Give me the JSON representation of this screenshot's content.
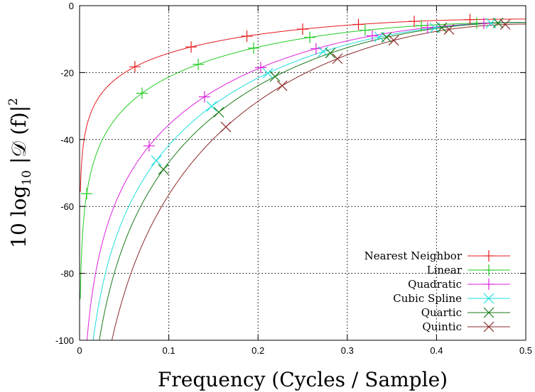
{
  "chart_data": {
    "type": "line",
    "xlabel": "Frequency (Cycles / Sample)",
    "ylabel": "10 log",
    "ylabel_sub": "10",
    "ylabel_rest": " |𝒟 (f)|",
    "ylabel_sup": "2",
    "xlim": [
      0,
      0.5
    ],
    "ylim": [
      -100,
      0
    ],
    "x_ticks": [
      0,
      0.1,
      0.2,
      0.3,
      0.4,
      0.5
    ],
    "x_tick_labels": [
      "0",
      "0.1",
      "0.2",
      "0.3",
      "0.4",
      "0.5"
    ],
    "y_ticks": [
      0,
      -20,
      -40,
      -60,
      -80,
      -100
    ],
    "y_tick_labels": [
      "0",
      "-20",
      "-40",
      "-60",
      "-80",
      "-100"
    ],
    "grid": true,
    "legend_position": "bottom-right",
    "series": [
      {
        "name": "Nearest Neighbor",
        "order": 1,
        "color": "#e41a1c",
        "marker": "plus",
        "marker_x": [
          0.062,
          0.125,
          0.1875,
          0.25,
          0.3125,
          0.375,
          0.4375
        ]
      },
      {
        "name": "Linear",
        "order": 2,
        "color": "#22cc22",
        "marker": "plus",
        "marker_x": [
          0.008,
          0.07,
          0.133,
          0.195,
          0.258,
          0.32,
          0.383,
          0.445
        ]
      },
      {
        "name": "Quadratic",
        "order": 3,
        "color": "#dd22dd",
        "marker": "plus",
        "marker_x": [
          0.078,
          0.14,
          0.203,
          0.265,
          0.328,
          0.39,
          0.453
        ]
      },
      {
        "name": "Cubic Spline",
        "order": 4,
        "color": "#22dddd",
        "marker": "x",
        "marker_x": [
          0.086,
          0.148,
          0.211,
          0.273,
          0.336,
          0.398,
          0.461
        ]
      },
      {
        "name": "Quartic",
        "order": 4,
        "color": "#1a7a1a",
        "marker": "x",
        "marker_x": [
          0.094,
          0.156,
          0.219,
          0.281,
          0.344,
          0.406,
          0.469
        ]
      },
      {
        "name": "Quintic",
        "order": 5,
        "color": "#8b2a2a",
        "marker": "x",
        "marker_x": [
          0.164,
          0.227,
          0.289,
          0.352,
          0.414,
          0.477
        ]
      }
    ]
  }
}
